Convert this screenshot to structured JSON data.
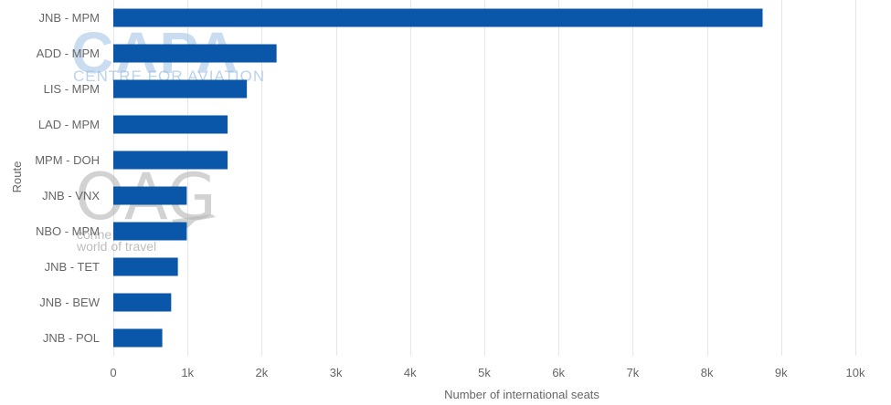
{
  "chart_data": {
    "type": "bar",
    "orientation": "horizontal",
    "categories": [
      "JNB - MPM",
      "ADD - MPM",
      "LIS - MPM",
      "LAD - MPM",
      "MPM - DOH",
      "JNB - VNX",
      "NBO - MPM",
      "JNB - TET",
      "JNB - BEW",
      "JNB - POL"
    ],
    "values": [
      8750,
      2200,
      1800,
      1540,
      1540,
      990,
      990,
      870,
      780,
      660
    ],
    "xlabel": "Number of international seats",
    "ylabel": "Route",
    "xlim": [
      0,
      10000
    ],
    "xticks": [
      0,
      1000,
      2000,
      3000,
      4000,
      5000,
      6000,
      7000,
      8000,
      9000,
      10000
    ],
    "xtick_labels": [
      "0",
      "1k",
      "2k",
      "3k",
      "4k",
      "5k",
      "6k",
      "7k",
      "8k",
      "9k",
      "10k"
    ],
    "grid": "vertical",
    "bar_color": "#0a56a8"
  },
  "watermarks": {
    "capa_logo": "CAPA",
    "capa_text": "CENTRE FOR AVIATION",
    "oag_logo": "OAG",
    "oag_text_1": "conne",
    "oag_text_2": "world of travel"
  }
}
